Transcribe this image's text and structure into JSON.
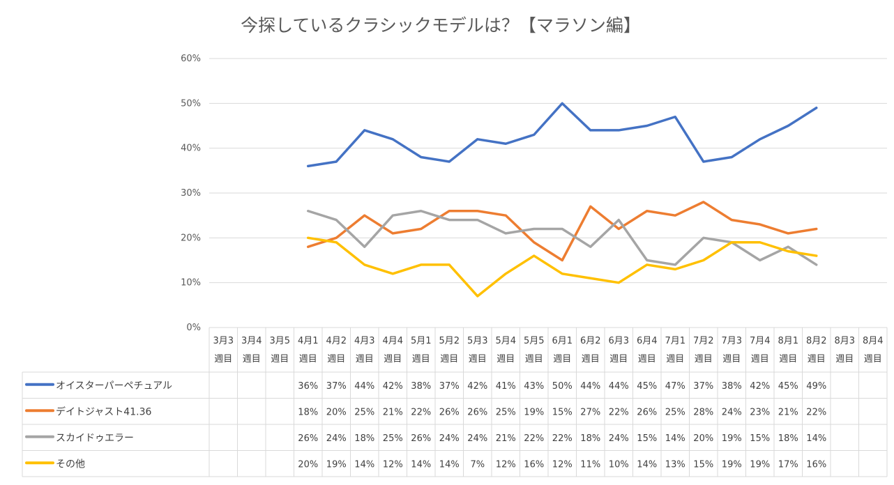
{
  "chart_data": {
    "type": "line",
    "title": "今探しているクラシックモデルは？【マラソン編】",
    "xlabel": "",
    "ylabel": "",
    "ylim": [
      0,
      60
    ],
    "y_ticks": [
      "0%",
      "10%",
      "20%",
      "30%",
      "40%",
      "50%",
      "60%"
    ],
    "grid": true,
    "legend": "bottom-data-table",
    "categories": [
      [
        "3月3",
        "週目"
      ],
      [
        "3月4",
        "週目"
      ],
      [
        "3月5",
        "週目"
      ],
      [
        "4月1",
        "週目"
      ],
      [
        "4月2",
        "週目"
      ],
      [
        "4月3",
        "週目"
      ],
      [
        "4月4",
        "週目"
      ],
      [
        "5月1",
        "週目"
      ],
      [
        "5月2",
        "週目"
      ],
      [
        "5月3",
        "週目"
      ],
      [
        "5月4",
        "週目"
      ],
      [
        "5月5",
        "週目"
      ],
      [
        "6月1",
        "週目"
      ],
      [
        "6月2",
        "週目"
      ],
      [
        "6月3",
        "週目"
      ],
      [
        "6月4",
        "週目"
      ],
      [
        "7月1",
        "週目"
      ],
      [
        "7月2",
        "週目"
      ],
      [
        "7月3",
        "週目"
      ],
      [
        "7月4",
        "週目"
      ],
      [
        "8月1",
        "週目"
      ],
      [
        "8月2",
        "週目"
      ],
      [
        "8月3",
        "週目"
      ],
      [
        "8月4",
        "週目"
      ]
    ],
    "series": [
      {
        "name": "オイスターパーペチュアル",
        "color": "#4472C4",
        "values": [
          null,
          null,
          null,
          36,
          37,
          44,
          42,
          38,
          37,
          42,
          41,
          43,
          50,
          44,
          44,
          45,
          47,
          37,
          38,
          42,
          45,
          49,
          null,
          null
        ],
        "labels": [
          "",
          "",
          "",
          "36%",
          "37%",
          "44%",
          "42%",
          "38%",
          "37%",
          "42%",
          "41%",
          "43%",
          "50%",
          "44%",
          "44%",
          "45%",
          "47%",
          "37%",
          "38%",
          "42%",
          "45%",
          "49%",
          "",
          ""
        ]
      },
      {
        "name": "デイトジャスト41.36",
        "color": "#ED7D31",
        "values": [
          null,
          null,
          null,
          18,
          20,
          25,
          21,
          22,
          26,
          26,
          25,
          19,
          15,
          27,
          22,
          26,
          25,
          28,
          24,
          23,
          21,
          22,
          null,
          null
        ],
        "labels": [
          "",
          "",
          "",
          "18%",
          "20%",
          "25%",
          "21%",
          "22%",
          "26%",
          "26%",
          "25%",
          "19%",
          "15%",
          "27%",
          "22%",
          "26%",
          "25%",
          "28%",
          "24%",
          "23%",
          "21%",
          "22%",
          "",
          ""
        ]
      },
      {
        "name": "スカイドゥエラー",
        "color": "#A5A5A5",
        "values": [
          null,
          null,
          null,
          26,
          24,
          18,
          25,
          26,
          24,
          24,
          21,
          22,
          22,
          18,
          24,
          15,
          14,
          20,
          19,
          15,
          18,
          14,
          null,
          null
        ],
        "labels": [
          "",
          "",
          "",
          "26%",
          "24%",
          "18%",
          "25%",
          "26%",
          "24%",
          "24%",
          "21%",
          "22%",
          "22%",
          "18%",
          "24%",
          "15%",
          "14%",
          "20%",
          "19%",
          "15%",
          "18%",
          "14%",
          "",
          ""
        ]
      },
      {
        "name": "その他",
        "color": "#FFC000",
        "values": [
          null,
          null,
          null,
          20,
          19,
          14,
          12,
          14,
          14,
          7,
          12,
          16,
          12,
          11,
          10,
          14,
          13,
          15,
          19,
          19,
          17,
          16,
          null,
          null
        ],
        "labels": [
          "",
          "",
          "",
          "20%",
          "19%",
          "14%",
          "12%",
          "14%",
          "14%",
          "7%",
          "12%",
          "16%",
          "12%",
          "11%",
          "10%",
          "14%",
          "13%",
          "15%",
          "19%",
          "19%",
          "17%",
          "16%",
          "",
          ""
        ]
      }
    ]
  }
}
